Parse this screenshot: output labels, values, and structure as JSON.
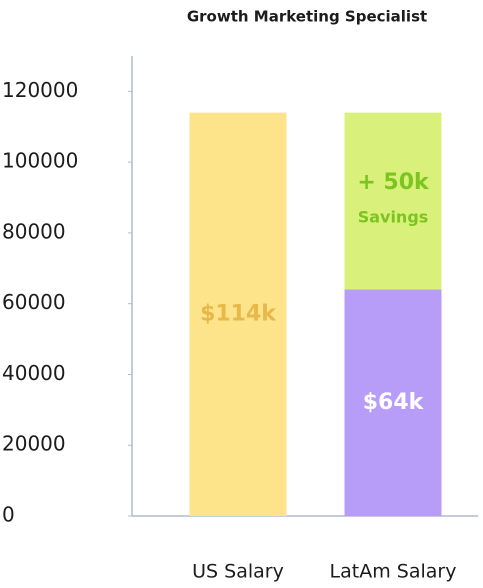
{
  "chart_data": {
    "type": "stacked-bar",
    "title": "Growth Marketing Specialist",
    "categories": [
      "US Salary",
      "LatAm Salary"
    ],
    "series": [
      {
        "color": "#fde38a",
        "label_color": "#e8b84a",
        "values": [
          114000,
          null
        ],
        "value_labels": [
          "$114k",
          null
        ]
      },
      {
        "color": "#b79cf8",
        "label_color": "#ffffff",
        "values": [
          null,
          64000
        ],
        "value_labels": [
          null,
          "$64k"
        ]
      },
      {
        "color": "#d9f07a",
        "label_color": "#7cc520",
        "values": [
          null,
          50000
        ],
        "value_labels": [
          null,
          "+ 50k"
        ],
        "annotation": "Savings"
      }
    ],
    "ylim": [
      0,
      130000
    ],
    "yticks": [
      0,
      20000,
      40000,
      60000,
      80000,
      100000,
      120000
    ],
    "grid": false
  }
}
